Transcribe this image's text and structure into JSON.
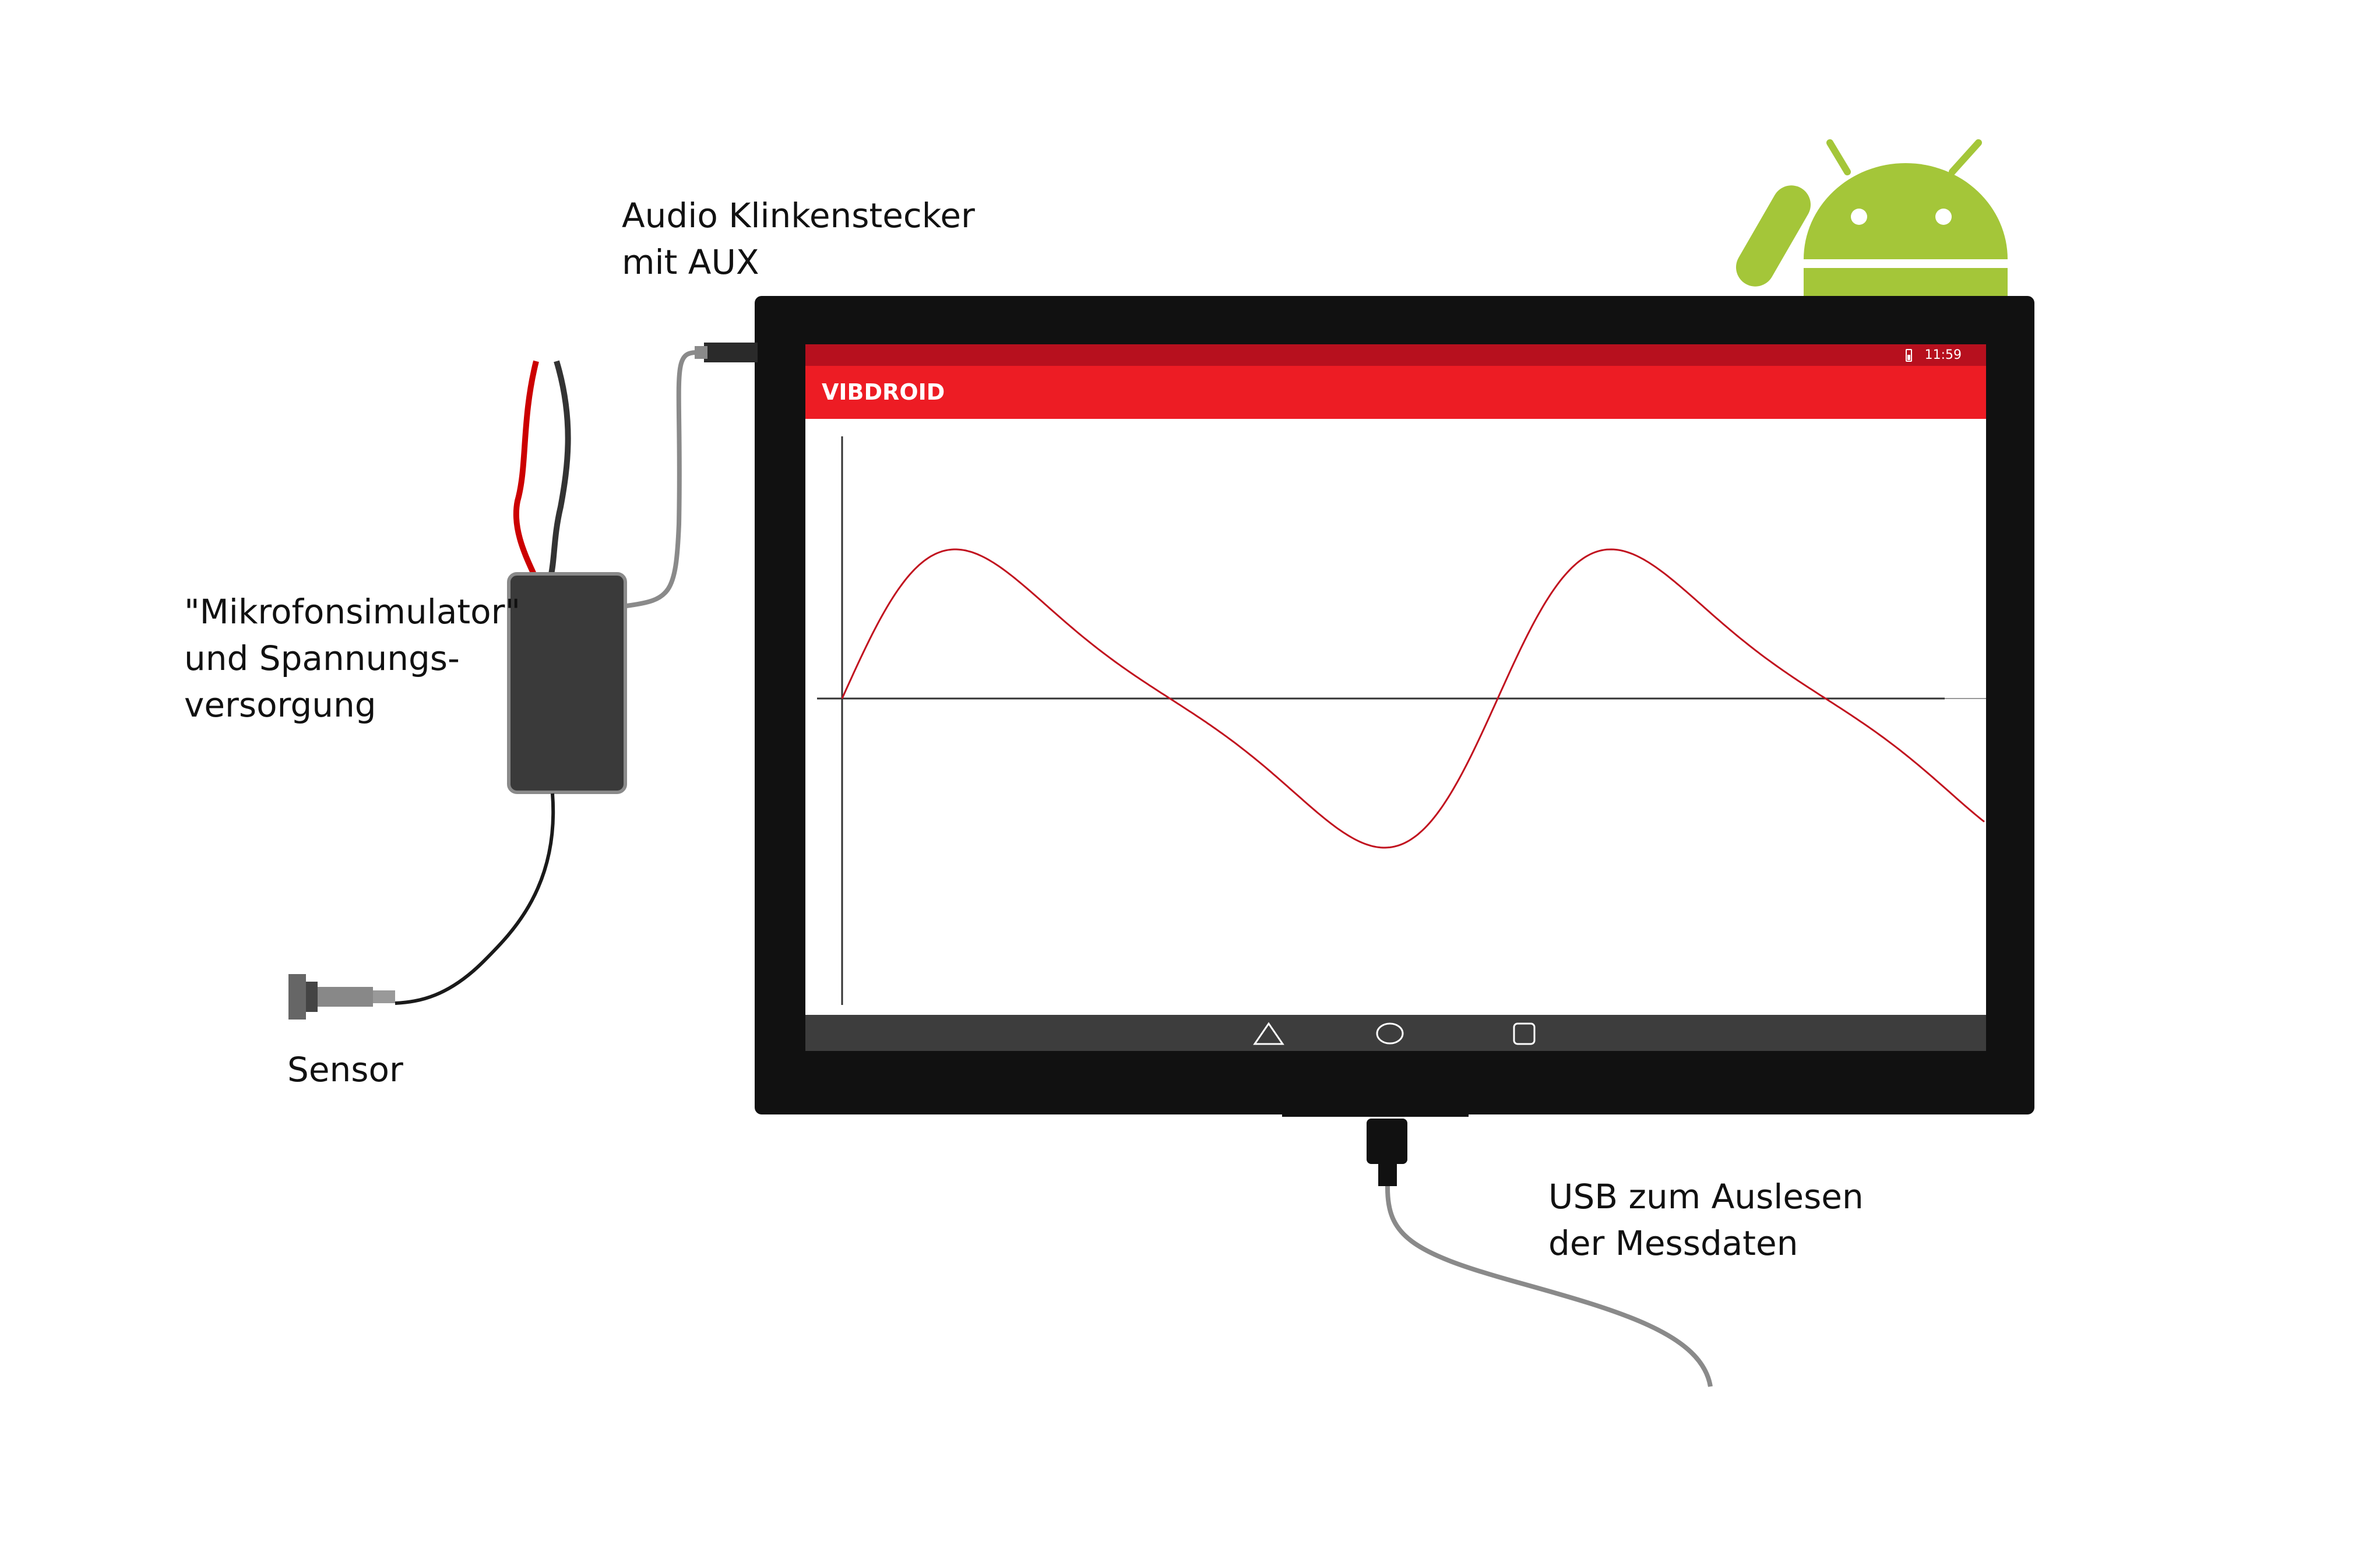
{
  "labels": {
    "audio_line1": "Audio Klinkenstecker",
    "audio_line2": "mit AUX",
    "mic_line1": "\"Mikrofonsimulator\"",
    "mic_line2": "und Spannungs-",
    "mic_line3": "versorgung",
    "sensor": "Sensor",
    "usb_line1": "USB zum Auslesen",
    "usb_line2": "der Messdaten"
  },
  "tablet": {
    "status_time": "11:59",
    "app_title": "VIBDROID"
  },
  "colors": {
    "frame": "#111111",
    "app_bar": "#ed1c24",
    "status_bar": "#b7101e",
    "nav_bar": "#3d3d3d",
    "signal": "#c1121f",
    "wire_red": "#cc0000",
    "wire_black": "#333333",
    "cable_gray": "#8a8a8a",
    "box": "#3a3a3a",
    "android_green": "#a4c639"
  },
  "icons": [
    "android-logo-icon",
    "battery-icon",
    "back-triangle-icon",
    "home-circle-icon",
    "recents-square-icon"
  ]
}
